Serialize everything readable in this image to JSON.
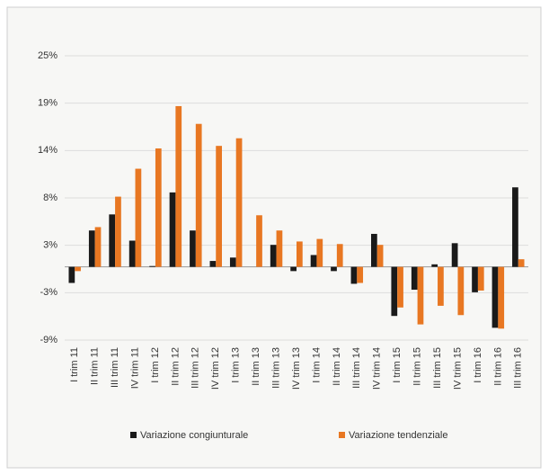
{
  "chart_data": {
    "type": "bar",
    "categories": [
      "I trim 11",
      "II trim 11",
      "III trim 11",
      "IV trim 11",
      "I trim 12",
      "II trim 12",
      "III trim 12",
      "IV trim 12",
      "I trim 13",
      "II trim 13",
      "III trim 13",
      "IV trim 13",
      "I trim 14",
      "II trim 14",
      "III trim 14",
      "IV trim 14",
      "I trim 15",
      "II trim 15",
      "III trim 15",
      "IV trim 15",
      "I trim 16",
      "II trim 16",
      "III trim 16"
    ],
    "series": [
      {
        "name": "Variazione congiunturale",
        "color": "#1a1a1a",
        "values": [
          -1.9,
          4.3,
          6.2,
          3.1,
          0.1,
          8.8,
          4.3,
          0.7,
          1.1,
          0,
          2.6,
          -0.5,
          1.4,
          -0.5,
          -2.0,
          3.9,
          -5.8,
          -2.7,
          0.3,
          2.8,
          -3.0,
          -7.2,
          9.4
        ]
      },
      {
        "name": "Variazione tendenziale",
        "color": "#e87722",
        "values": [
          -0.5,
          4.7,
          8.3,
          11.6,
          14.0,
          19.0,
          16.9,
          14.3,
          15.2,
          6.1,
          4.3,
          3.0,
          3.3,
          2.7,
          -1.9,
          2.6,
          -4.8,
          -6.8,
          -4.6,
          -5.7,
          -2.8,
          -7.3,
          0.9
        ]
      }
    ],
    "ylim": [
      -8.65,
      24.95
    ],
    "yticks": [
      {
        "value": -8.65,
        "label": "-9%"
      },
      {
        "value": -3.05,
        "label": "-3%"
      },
      {
        "value": 2.55,
        "label": "3%"
      },
      {
        "value": 8.15,
        "label": "8%"
      },
      {
        "value": 13.75,
        "label": "14%"
      },
      {
        "value": 19.35,
        "label": "19%"
      },
      {
        "value": 24.95,
        "label": "25%"
      }
    ],
    "grid": true
  }
}
